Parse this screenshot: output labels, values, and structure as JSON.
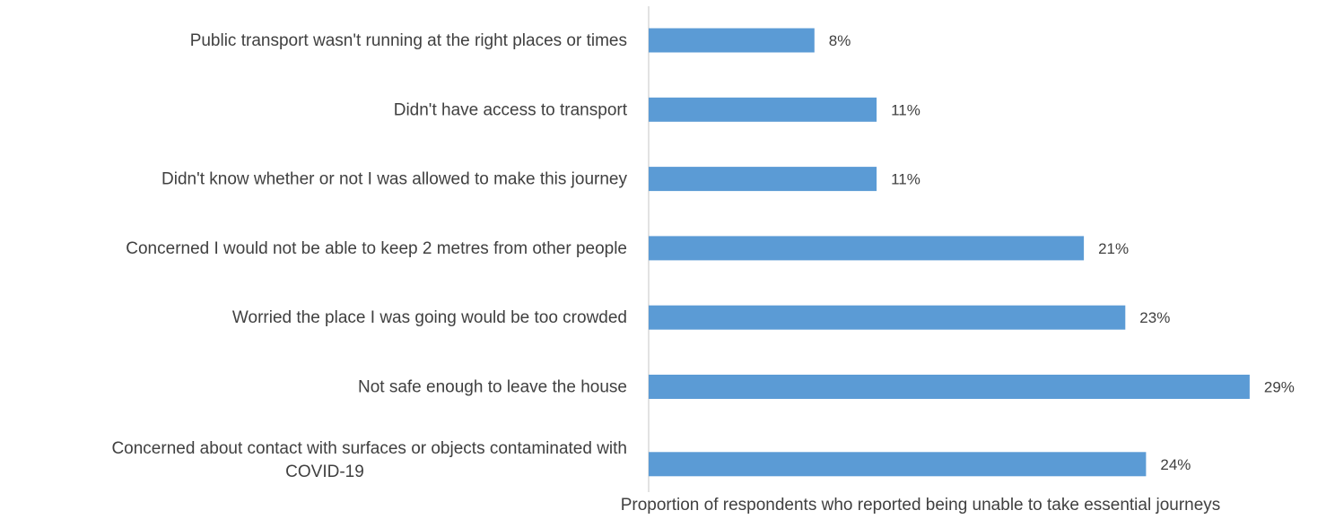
{
  "chart_data": {
    "type": "bar",
    "orientation": "horizontal",
    "categories": [
      [
        "Public transport wasn't running at the right places or times"
      ],
      [
        "Didn't have access to transport"
      ],
      [
        "Didn't know whether or not I was allowed to make this journey"
      ],
      [
        "Concerned I would not be able to keep 2 metres from other people"
      ],
      [
        "Worried the place I was going would be too crowded"
      ],
      [
        "Not safe enough to leave the house"
      ],
      [
        "Concerned about contact with surfaces or objects contaminated with",
        "COVID-19"
      ]
    ],
    "values": [
      8,
      11,
      11,
      21,
      23,
      29,
      24
    ],
    "value_labels": [
      "8%",
      "11%",
      "11%",
      "21%",
      "23%",
      "29%",
      "24%"
    ],
    "xlabel": "Proportion of respondents who reported being unable to take essential journeys",
    "ylabel": "",
    "xlim": [
      0,
      32
    ],
    "grid": false,
    "legend": "none",
    "colors": {
      "bar": "#5b9bd5",
      "axis": "#d9d9d9",
      "text": "#404040"
    }
  }
}
